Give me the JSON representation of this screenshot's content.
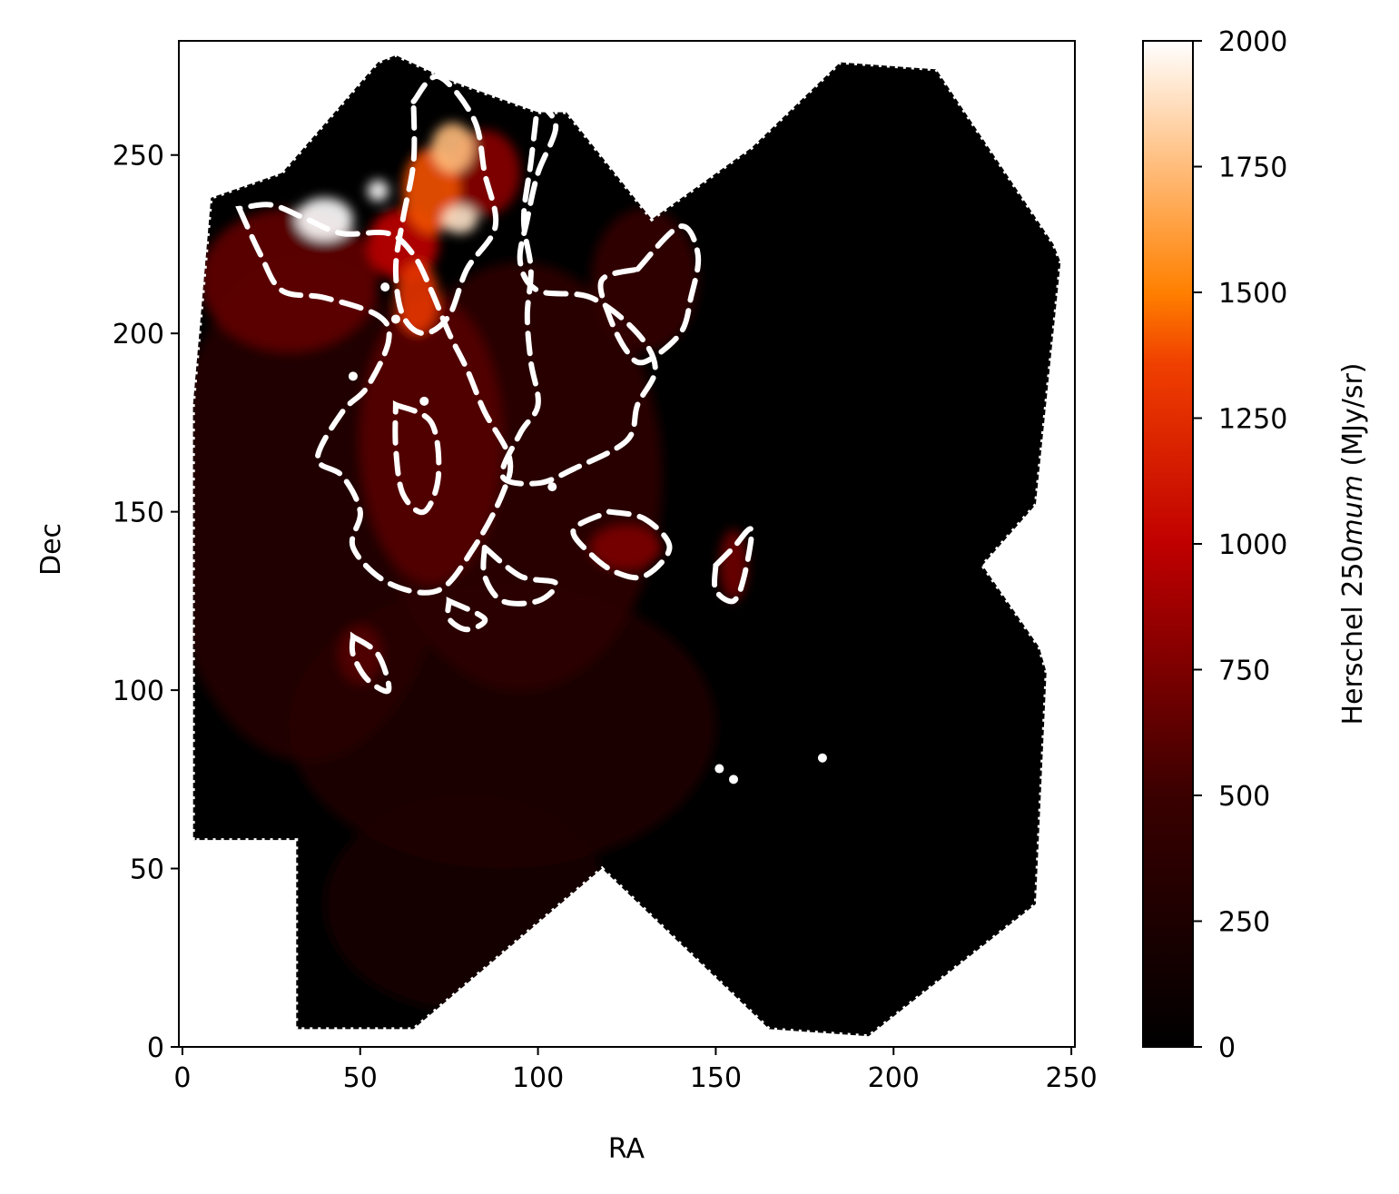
{
  "chart_data": {
    "type": "heatmap",
    "title": "",
    "xlabel": "RA",
    "ylabel": "Dec",
    "xlim": [
      -1,
      251
    ],
    "ylim": [
      0,
      282
    ],
    "xticks": [
      0,
      50,
      100,
      150,
      200,
      250
    ],
    "yticks": [
      0,
      50,
      100,
      150,
      200,
      250
    ],
    "grid": false,
    "colormap": "gist_heat",
    "colorbar": {
      "label_text": "Herschel 250",
      "label_math": "mum",
      "label_unit": " (MJy/sr)",
      "range": [
        0,
        2000
      ],
      "ticks": [
        0,
        250,
        500,
        750,
        1000,
        1250,
        1500,
        1750,
        2000
      ]
    },
    "colors": {
      "low": "#000000",
      "mid": "#c00000",
      "high_orange": "#ff8000",
      "max": "#ffffff",
      "contour": "#ffffff"
    },
    "coverage_polygon": [
      [
        3,
        58
      ],
      [
        3,
        180
      ],
      [
        8,
        238
      ],
      [
        28,
        245
      ],
      [
        55,
        276
      ],
      [
        60,
        278
      ],
      [
        75,
        271
      ],
      [
        100,
        262
      ],
      [
        108,
        262
      ],
      [
        132,
        232
      ],
      [
        160,
        252
      ],
      [
        185,
        276
      ],
      [
        212,
        274
      ],
      [
        245,
        225
      ],
      [
        247,
        220
      ],
      [
        240,
        152
      ],
      [
        225,
        135
      ],
      [
        241,
        112
      ],
      [
        243,
        105
      ],
      [
        240,
        40
      ],
      [
        193,
        3
      ],
      [
        165,
        5
      ],
      [
        118,
        50
      ],
      [
        65,
        5
      ],
      [
        32,
        5
      ],
      [
        32,
        58
      ],
      [
        22,
        58
      ],
      [
        3,
        58
      ]
    ],
    "bright_regions": [
      {
        "x": 40,
        "y": 232,
        "rx": 8,
        "ry": 6,
        "value": 2000
      },
      {
        "x": 55,
        "y": 240,
        "rx": 3,
        "ry": 3,
        "value": 2000
      },
      {
        "x": 78,
        "y": 232,
        "rx": 5,
        "ry": 4,
        "value": 1900
      },
      {
        "x": 76,
        "y": 252,
        "rx": 6,
        "ry": 7,
        "value": 1750
      },
      {
        "x": 70,
        "y": 240,
        "rx": 8,
        "ry": 12,
        "value": 1400
      },
      {
        "x": 66,
        "y": 210,
        "rx": 6,
        "ry": 10,
        "value": 1300
      },
      {
        "x": 62,
        "y": 225,
        "rx": 10,
        "ry": 10,
        "value": 1000
      },
      {
        "x": 85,
        "y": 245,
        "rx": 10,
        "ry": 12,
        "value": 800
      },
      {
        "x": 30,
        "y": 215,
        "rx": 25,
        "ry": 20,
        "value": 650
      },
      {
        "x": 70,
        "y": 170,
        "rx": 20,
        "ry": 40,
        "value": 600
      },
      {
        "x": 125,
        "y": 140,
        "rx": 10,
        "ry": 6,
        "value": 750
      },
      {
        "x": 155,
        "y": 135,
        "rx": 4,
        "ry": 10,
        "value": 700
      },
      {
        "x": 50,
        "y": 110,
        "rx": 6,
        "ry": 8,
        "value": 600
      },
      {
        "x": 130,
        "y": 215,
        "rx": 15,
        "ry": 20,
        "value": 450
      },
      {
        "x": 95,
        "y": 160,
        "rx": 40,
        "ry": 60,
        "value": 400
      },
      {
        "x": 35,
        "y": 150,
        "rx": 40,
        "ry": 70,
        "value": 330
      },
      {
        "x": 90,
        "y": 90,
        "rx": 60,
        "ry": 40,
        "value": 250
      },
      {
        "x": 80,
        "y": 40,
        "rx": 40,
        "ry": 30,
        "value": 180
      }
    ],
    "contours": [
      [
        [
          16,
          235
        ],
        [
          22,
          222
        ],
        [
          28,
          212
        ],
        [
          40,
          210
        ],
        [
          55,
          205
        ],
        [
          58,
          198
        ],
        [
          52,
          185
        ],
        [
          45,
          178
        ],
        [
          38,
          165
        ],
        [
          45,
          160
        ],
        [
          50,
          150
        ],
        [
          48,
          140
        ],
        [
          58,
          130
        ],
        [
          72,
          128
        ],
        [
          82,
          140
        ],
        [
          90,
          155
        ],
        [
          92,
          165
        ],
        [
          85,
          178
        ],
        [
          80,
          190
        ],
        [
          75,
          200
        ],
        [
          70,
          212
        ],
        [
          65,
          222
        ],
        [
          58,
          228
        ],
        [
          45,
          228
        ],
        [
          35,
          232
        ],
        [
          25,
          236
        ],
        [
          16,
          235
        ]
      ],
      [
        [
          65,
          265
        ],
        [
          72,
          272
        ],
        [
          82,
          260
        ],
        [
          85,
          245
        ],
        [
          88,
          230
        ],
        [
          80,
          218
        ],
        [
          75,
          205
        ],
        [
          68,
          200
        ],
        [
          62,
          205
        ],
        [
          60,
          218
        ],
        [
          62,
          232
        ],
        [
          65,
          248
        ],
        [
          65,
          265
        ]
      ],
      [
        [
          100,
          265
        ],
        [
          105,
          258
        ],
        [
          100,
          245
        ],
        [
          97,
          232
        ],
        [
          95,
          220
        ],
        [
          100,
          212
        ],
        [
          115,
          210
        ],
        [
          128,
          200
        ],
        [
          133,
          190
        ],
        [
          128,
          180
        ],
        [
          125,
          170
        ],
        [
          110,
          162
        ],
        [
          100,
          158
        ],
        [
          90,
          160
        ],
        [
          95,
          172
        ],
        [
          100,
          180
        ],
        [
          98,
          192
        ],
        [
          97,
          205
        ],
        [
          98,
          218
        ],
        [
          96,
          232
        ],
        [
          98,
          248
        ],
        [
          100,
          265
        ]
      ],
      [
        [
          128,
          218
        ],
        [
          140,
          230
        ],
        [
          145,
          222
        ],
        [
          143,
          210
        ],
        [
          140,
          200
        ],
        [
          130,
          192
        ],
        [
          125,
          195
        ],
        [
          120,
          205
        ],
        [
          118,
          215
        ],
        [
          128,
          218
        ]
      ],
      [
        [
          120,
          150
        ],
        [
          130,
          148
        ],
        [
          137,
          140
        ],
        [
          130,
          132
        ],
        [
          122,
          133
        ],
        [
          115,
          138
        ],
        [
          110,
          145
        ],
        [
          120,
          150
        ]
      ],
      [
        [
          150,
          135
        ],
        [
          155,
          140
        ],
        [
          160,
          145
        ],
        [
          158,
          132
        ],
        [
          155,
          125
        ],
        [
          150,
          128
        ],
        [
          150,
          135
        ]
      ],
      [
        [
          85,
          140
        ],
        [
          95,
          132
        ],
        [
          105,
          130
        ],
        [
          100,
          125
        ],
        [
          90,
          125
        ],
        [
          85,
          132
        ],
        [
          85,
          140
        ]
      ],
      [
        [
          48,
          115
        ],
        [
          55,
          110
        ],
        [
          58,
          100
        ],
        [
          52,
          103
        ],
        [
          48,
          110
        ],
        [
          48,
          115
        ]
      ],
      [
        [
          75,
          125
        ],
        [
          85,
          120
        ],
        [
          80,
          117
        ],
        [
          75,
          120
        ],
        [
          75,
          125
        ]
      ],
      [
        [
          60,
          180
        ],
        [
          70,
          175
        ],
        [
          72,
          160
        ],
        [
          68,
          150
        ],
        [
          62,
          155
        ],
        [
          60,
          168
        ],
        [
          60,
          180
        ]
      ]
    ],
    "point_sources": [
      [
        151,
        78
      ],
      [
        155,
        75
      ],
      [
        180,
        81
      ],
      [
        57,
        213
      ],
      [
        48,
        188
      ],
      [
        104,
        157
      ],
      [
        60,
        204
      ],
      [
        68,
        181
      ]
    ]
  }
}
